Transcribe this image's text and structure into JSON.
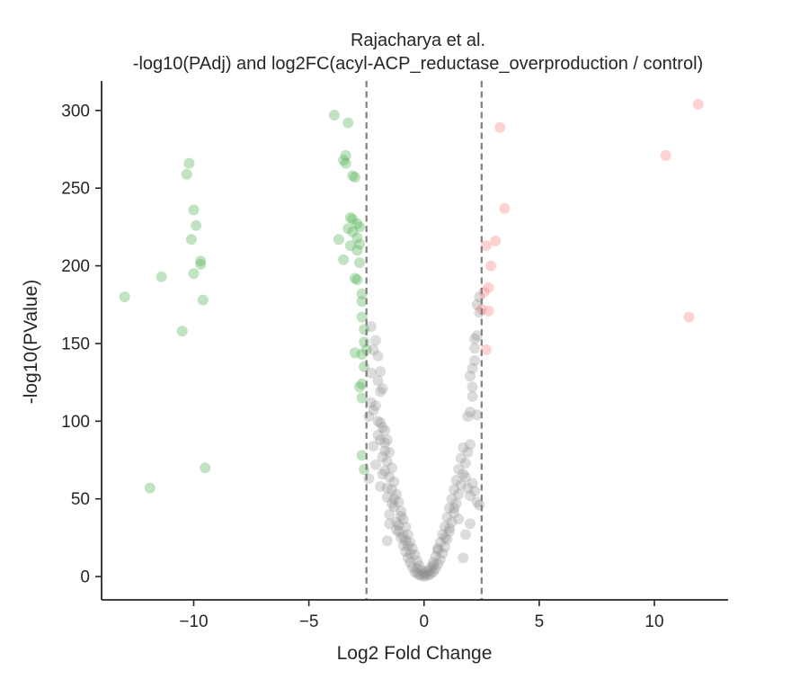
{
  "chart_data": {
    "type": "scatter",
    "title_line1": "Rajacharya et al.",
    "title_line2": "-log10(PAdj) and log2FC(acyl-ACP_reductase_overproduction / control)",
    "xlabel": "Log2 Fold Change",
    "ylabel": "-log10(PValue)",
    "xlim": [
      -14,
      13.2
    ],
    "ylim": [
      -15,
      319
    ],
    "x_ticks": [
      {
        "value": -10,
        "label": "−10"
      },
      {
        "value": -5,
        "label": "−5"
      },
      {
        "value": 0,
        "label": "0"
      },
      {
        "value": 5,
        "label": "5"
      },
      {
        "value": 10,
        "label": "10"
      }
    ],
    "y_ticks": [
      {
        "value": 0,
        "label": "0"
      },
      {
        "value": 50,
        "label": "50"
      },
      {
        "value": 100,
        "label": "100"
      },
      {
        "value": 150,
        "label": "150"
      },
      {
        "value": 200,
        "label": "200"
      },
      {
        "value": 250,
        "label": "250"
      },
      {
        "value": 300,
        "label": "300"
      }
    ],
    "thresholds": [
      -2.5,
      2.5
    ],
    "colors": {
      "down": "#4caf50",
      "up": "#ff7f7f",
      "ns": "#8c8c8c",
      "threshold": "#808080",
      "axis": "#262626"
    },
    "series": [
      {
        "group": "down",
        "points": [
          [
            -10.2,
            266
          ],
          [
            -10.3,
            259
          ],
          [
            -10.0,
            236
          ],
          [
            -9.9,
            226
          ],
          [
            -10.1,
            217
          ],
          [
            -9.7,
            203
          ],
          [
            -9.7,
            201
          ],
          [
            -10.0,
            195
          ],
          [
            -11.4,
            193
          ],
          [
            -13.0,
            180
          ],
          [
            -9.6,
            178
          ],
          [
            -10.5,
            158
          ],
          [
            -9.5,
            70
          ],
          [
            -11.9,
            57
          ],
          [
            -3.9,
            297
          ],
          [
            -3.3,
            292
          ],
          [
            -3.4,
            271
          ],
          [
            -3.5,
            268
          ],
          [
            -3.4,
            266
          ],
          [
            -3.1,
            258
          ],
          [
            -3.0,
            257
          ],
          [
            -3.2,
            231
          ],
          [
            -3.1,
            230
          ],
          [
            -3.3,
            224
          ],
          [
            -2.9,
            227
          ],
          [
            -2.8,
            225
          ],
          [
            -3.1,
            222
          ],
          [
            -2.9,
            218
          ],
          [
            -3.7,
            217
          ],
          [
            -3.2,
            213
          ],
          [
            -2.8,
            214
          ],
          [
            -2.9,
            210
          ],
          [
            -3.5,
            204
          ],
          [
            -2.8,
            202
          ],
          [
            -3.0,
            192
          ],
          [
            -2.9,
            191
          ],
          [
            -2.7,
            182
          ],
          [
            -2.7,
            177
          ],
          [
            -2.7,
            167
          ],
          [
            -2.6,
            159
          ],
          [
            -2.6,
            151
          ],
          [
            -2.5,
            146
          ],
          [
            -3.0,
            144
          ],
          [
            -2.7,
            143
          ],
          [
            -2.6,
            135
          ],
          [
            -2.7,
            124
          ],
          [
            -2.8,
            122
          ],
          [
            -2.7,
            115
          ],
          [
            -2.7,
            78
          ],
          [
            -2.6,
            69
          ]
        ]
      },
      {
        "group": "up",
        "points": [
          [
            11.9,
            304
          ],
          [
            3.3,
            289
          ],
          [
            10.5,
            271
          ],
          [
            3.5,
            237
          ],
          [
            3.1,
            216
          ],
          [
            2.7,
            213
          ],
          [
            2.9,
            200
          ],
          [
            2.8,
            186
          ],
          [
            2.6,
            183
          ],
          [
            2.5,
            172
          ],
          [
            2.8,
            171
          ],
          [
            11.5,
            167
          ],
          [
            2.7,
            146
          ]
        ]
      },
      {
        "group": "ns",
        "points": [
          [
            -2.3,
            161
          ],
          [
            -2.1,
            152
          ],
          [
            -2.2,
            146
          ],
          [
            -2.0,
            142
          ],
          [
            -1.9,
            132
          ],
          [
            -2.0,
            126
          ],
          [
            -1.8,
            121
          ],
          [
            -1.9,
            119
          ],
          [
            -2.3,
            112
          ],
          [
            -2.1,
            110
          ],
          [
            -2.4,
            103
          ],
          [
            -1.9,
            99
          ],
          [
            -1.8,
            96
          ],
          [
            -1.7,
            94
          ],
          [
            -2.0,
            91
          ],
          [
            -1.6,
            88
          ],
          [
            -1.7,
            86
          ],
          [
            -2.2,
            84
          ],
          [
            -1.5,
            80
          ],
          [
            -1.8,
            77
          ],
          [
            -1.6,
            74
          ],
          [
            -1.4,
            70
          ],
          [
            -1.7,
            68
          ],
          [
            -1.5,
            64
          ],
          [
            -1.3,
            61
          ],
          [
            -1.9,
            58
          ],
          [
            -1.4,
            56
          ],
          [
            -1.2,
            53
          ],
          [
            -1.6,
            51
          ],
          [
            -1.1,
            48
          ],
          [
            -1.3,
            45
          ],
          [
            -1.0,
            42
          ],
          [
            -1.5,
            40
          ],
          [
            -0.9,
            37
          ],
          [
            -1.2,
            35
          ],
          [
            -0.8,
            32
          ],
          [
            -1.1,
            29
          ],
          [
            -0.7,
            27
          ],
          [
            -1.0,
            25
          ],
          [
            -0.6,
            22
          ],
          [
            -1.6,
            23
          ],
          [
            -0.9,
            20
          ],
          [
            -0.5,
            18
          ],
          [
            -0.8,
            16
          ],
          [
            -0.4,
            14
          ],
          [
            -0.7,
            12
          ],
          [
            -0.3,
            10
          ],
          [
            -0.6,
            9
          ],
          [
            -0.2,
            7
          ],
          [
            -0.5,
            6
          ],
          [
            -0.1,
            4
          ],
          [
            -0.4,
            3
          ],
          [
            0.0,
            2
          ],
          [
            -0.3,
            2
          ],
          [
            -0.2,
            1
          ],
          [
            -0.1,
            1
          ],
          [
            0.0,
            0
          ],
          [
            0.1,
            1
          ],
          [
            0.2,
            1
          ],
          [
            0.3,
            2
          ],
          [
            0.1,
            3
          ],
          [
            0.4,
            3
          ],
          [
            0.2,
            4
          ],
          [
            0.5,
            5
          ],
          [
            0.3,
            6
          ],
          [
            0.6,
            8
          ],
          [
            0.4,
            9
          ],
          [
            0.7,
            11
          ],
          [
            0.5,
            13
          ],
          [
            0.8,
            15
          ],
          [
            0.6,
            17
          ],
          [
            0.9,
            19
          ],
          [
            0.7,
            22
          ],
          [
            1.0,
            24
          ],
          [
            0.8,
            27
          ],
          [
            1.1,
            29
          ],
          [
            0.9,
            32
          ],
          [
            1.2,
            35
          ],
          [
            1.0,
            38
          ],
          [
            1.3,
            41
          ],
          [
            1.1,
            44
          ],
          [
            1.4,
            47
          ],
          [
            1.2,
            50
          ],
          [
            1.5,
            53
          ],
          [
            1.3,
            56
          ],
          [
            1.6,
            59
          ],
          [
            1.4,
            62
          ],
          [
            1.7,
            66
          ],
          [
            1.5,
            69
          ],
          [
            1.8,
            73
          ],
          [
            1.6,
            76
          ],
          [
            1.9,
            80
          ],
          [
            1.7,
            83
          ],
          [
            2.0,
            85
          ],
          [
            1.8,
            64
          ],
          [
            2.1,
            60
          ],
          [
            1.9,
            57
          ],
          [
            2.2,
            55
          ],
          [
            2.0,
            52
          ],
          [
            2.3,
            48
          ],
          [
            1.3,
            44
          ],
          [
            2.4,
            46
          ],
          [
            1.5,
            37
          ],
          [
            2.0,
            34
          ],
          [
            1.8,
            27
          ],
          [
            1.7,
            12
          ],
          [
            0.6,
            18
          ],
          [
            0.9,
            25
          ],
          [
            1.1,
            31
          ],
          [
            0.4,
            7
          ],
          [
            2.0,
            106
          ],
          [
            1.9,
            103
          ],
          [
            2.1,
            122
          ],
          [
            2.0,
            129
          ],
          [
            2.1,
            134
          ],
          [
            2.2,
            139
          ],
          [
            2.2,
            153
          ],
          [
            2.3,
            155
          ],
          [
            2.3,
            175
          ],
          [
            2.4,
            170
          ],
          [
            2.2,
            147
          ],
          [
            2.1,
            116
          ],
          [
            2.4,
            180
          ],
          [
            2.3,
            104
          ],
          [
            -1.2,
            30
          ],
          [
            -0.9,
            26
          ],
          [
            -0.7,
            20
          ],
          [
            -1.4,
            47
          ],
          [
            -1.8,
            66
          ],
          [
            -2.1,
            72
          ],
          [
            -1.5,
            34
          ],
          [
            -0.6,
            15
          ],
          [
            -2.4,
            63
          ],
          [
            -1.0,
            39
          ],
          [
            -2.2,
            107
          ],
          [
            -1.9,
            88
          ],
          [
            -2.0,
            100
          ],
          [
            -1.7,
            81
          ],
          [
            -1.6,
            57
          ],
          [
            -0.8,
            23
          ],
          [
            -0.3,
            5
          ],
          [
            -1.3,
            50
          ],
          [
            -1.1,
            33
          ],
          [
            -2.3,
            131
          ]
        ]
      }
    ]
  }
}
